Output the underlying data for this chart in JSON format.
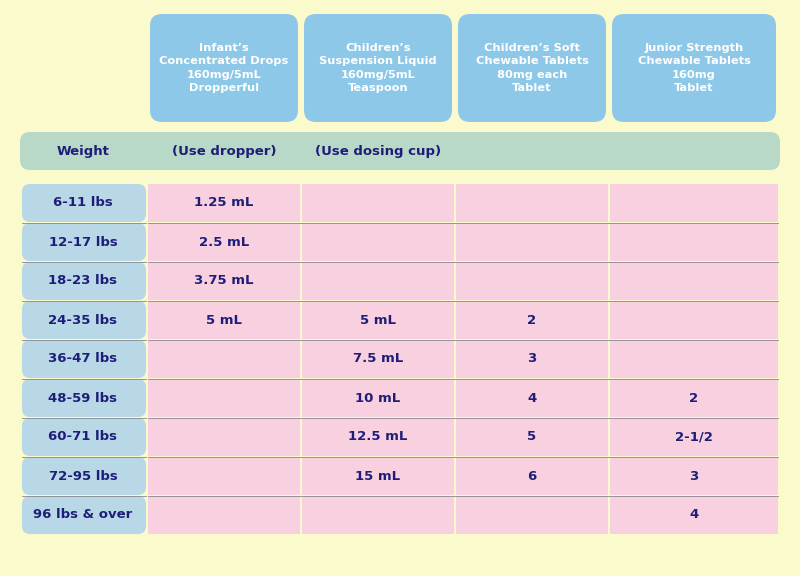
{
  "bg_color": "#fafacc",
  "header_bg": "#8dc8e8",
  "subheader_bg": "#b8d8c8",
  "row_label_bg": "#b8d8e8",
  "data_pink": "#f8d0e0",
  "text_dark": "#1e1e78",
  "text_white": "#ffffff",
  "header_texts": [
    "Infant’s\nConcentrated Drops\n160mg/5mL\nDropperful",
    "Children’s\nSuspension Liquid\n160mg/5mL\nTeaspoon",
    "Children’s Soft\nChewable Tablets\n80mg each\nTablet",
    "Junior Strength\nChewable Tablets\n160mg\nTablet"
  ],
  "weight_labels": [
    "6-11 lbs",
    "12-17 lbs",
    "18-23 lbs",
    "24-35 lbs",
    "36-47 lbs",
    "48-59 lbs",
    "60-71 lbs",
    "72-95 lbs",
    "96 lbs & over"
  ],
  "col1_data": [
    "1.25 mL",
    "2.5 mL",
    "3.75 mL",
    "5 mL",
    "",
    "",
    "",
    "",
    ""
  ],
  "col2_data": [
    "",
    "",
    "",
    "5 mL",
    "7.5 mL",
    "10 mL",
    "12.5 mL",
    "15 mL",
    ""
  ],
  "col3_data": [
    "",
    "",
    "",
    "2",
    "3",
    "4",
    "5",
    "6",
    ""
  ],
  "col4_data": [
    "",
    "",
    "",
    "",
    "",
    "2",
    "2-1/2",
    "3",
    "4"
  ],
  "fig_width": 8.0,
  "fig_height": 5.76,
  "dpi": 100
}
